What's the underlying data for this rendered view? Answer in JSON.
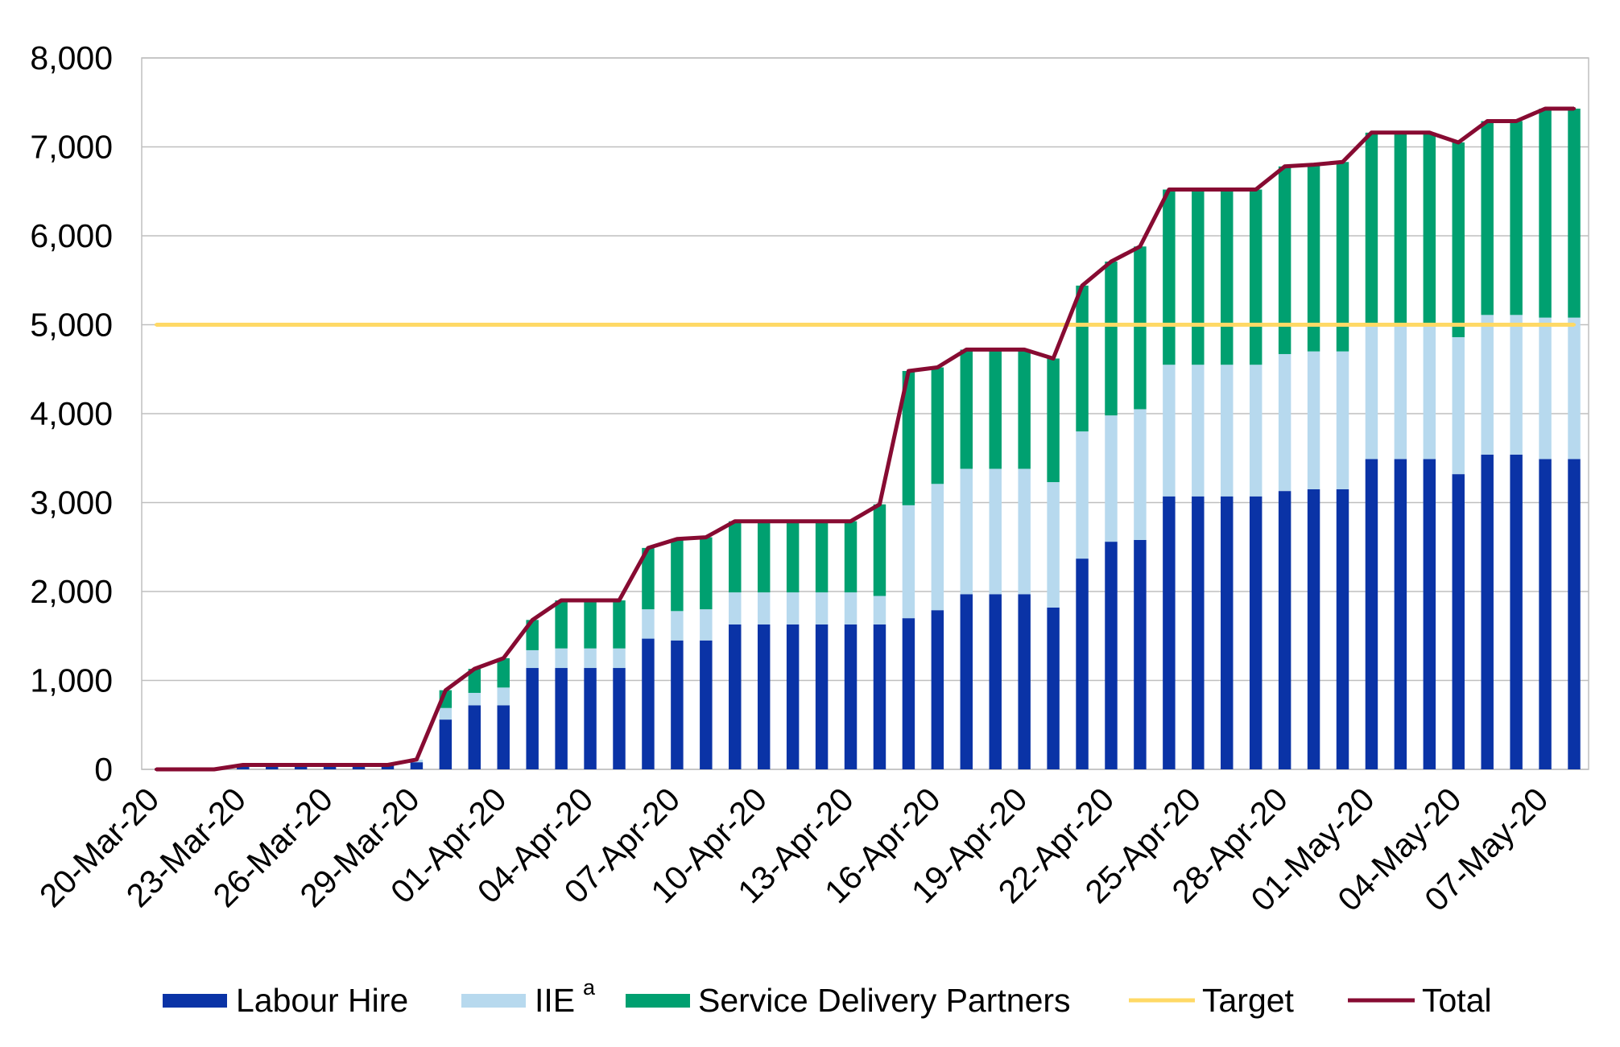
{
  "chart_data": {
    "type": "bar",
    "stacked": true,
    "categories": [
      "20-Mar-20",
      "21-Mar-20",
      "22-Mar-20",
      "23-Mar-20",
      "24-Mar-20",
      "25-Mar-20",
      "26-Mar-20",
      "27-Mar-20",
      "28-Mar-20",
      "29-Mar-20",
      "30-Mar-20",
      "31-Mar-20",
      "01-Apr-20",
      "02-Apr-20",
      "03-Apr-20",
      "04-Apr-20",
      "05-Apr-20",
      "06-Apr-20",
      "07-Apr-20",
      "08-Apr-20",
      "09-Apr-20",
      "10-Apr-20",
      "11-Apr-20",
      "12-Apr-20",
      "13-Apr-20",
      "14-Apr-20",
      "15-Apr-20",
      "16-Apr-20",
      "17-Apr-20",
      "18-Apr-20",
      "19-Apr-20",
      "20-Apr-20",
      "21-Apr-20",
      "22-Apr-20",
      "23-Apr-20",
      "24-Apr-20",
      "25-Apr-20",
      "26-Apr-20",
      "27-Apr-20",
      "28-Apr-20",
      "29-Apr-20",
      "30-Apr-20",
      "01-May-20",
      "02-May-20",
      "03-May-20",
      "04-May-20",
      "05-May-20",
      "06-May-20",
      "07-May-20",
      "08-May-20"
    ],
    "y_tick_labels": [
      "0",
      "1,000",
      "2,000",
      "3,000",
      "4,000",
      "5,000",
      "6,000",
      "7,000",
      "8,000"
    ],
    "ylim": [
      0,
      8000
    ],
    "grid": "horizontal",
    "legend_position": "bottom",
    "series": [
      {
        "name": "Labour Hire",
        "type": "bar",
        "color": "#0A33A6",
        "values": [
          0,
          0,
          0,
          50,
          50,
          50,
          50,
          50,
          50,
          80,
          560,
          720,
          720,
          1140,
          1140,
          1140,
          1140,
          1470,
          1450,
          1450,
          1630,
          1630,
          1630,
          1630,
          1630,
          1630,
          1700,
          1790,
          1970,
          1970,
          1970,
          1820,
          2370,
          2560,
          2580,
          3070,
          3070,
          3070,
          3070,
          3130,
          3150,
          3150,
          3490,
          3490,
          3490,
          3320,
          3540,
          3540,
          3490,
          3490
        ]
      },
      {
        "name": "IIE",
        "superscript": "a",
        "type": "bar",
        "color": "#B7D9EE",
        "values": [
          0,
          0,
          0,
          0,
          0,
          0,
          0,
          0,
          0,
          30,
          130,
          140,
          200,
          200,
          220,
          220,
          220,
          330,
          330,
          350,
          360,
          360,
          360,
          360,
          360,
          320,
          1270,
          1420,
          1410,
          1410,
          1410,
          1410,
          1430,
          1420,
          1470,
          1480,
          1480,
          1480,
          1480,
          1540,
          1550,
          1550,
          1520,
          1520,
          1520,
          1540,
          1570,
          1570,
          1590,
          1590
        ]
      },
      {
        "name": "Service Delivery Partners",
        "type": "bar",
        "color": "#00A070",
        "values": [
          0,
          0,
          0,
          0,
          0,
          0,
          0,
          0,
          0,
          0,
          200,
          270,
          330,
          340,
          540,
          540,
          540,
          690,
          810,
          810,
          800,
          800,
          800,
          800,
          800,
          1030,
          1510,
          1310,
          1340,
          1340,
          1340,
          1390,
          1640,
          1730,
          1830,
          1970,
          1970,
          1970,
          1970,
          2110,
          2100,
          2130,
          2150,
          2150,
          2150,
          2190,
          2180,
          2180,
          2350,
          2350
        ]
      },
      {
        "name": "Target",
        "type": "line",
        "color": "#FFD966",
        "values": [
          5000,
          5000,
          5000,
          5000,
          5000,
          5000,
          5000,
          5000,
          5000,
          5000,
          5000,
          5000,
          5000,
          5000,
          5000,
          5000,
          5000,
          5000,
          5000,
          5000,
          5000,
          5000,
          5000,
          5000,
          5000,
          5000,
          5000,
          5000,
          5000,
          5000,
          5000,
          5000,
          5000,
          5000,
          5000,
          5000,
          5000,
          5000,
          5000,
          5000,
          5000,
          5000,
          5000,
          5000,
          5000,
          5000,
          5000,
          5000,
          5000,
          5000
        ]
      },
      {
        "name": "Total",
        "type": "line",
        "color": "#870B32",
        "values": [
          0,
          0,
          0,
          50,
          50,
          50,
          50,
          50,
          50,
          110,
          890,
          1130,
          1250,
          1680,
          1900,
          1900,
          1900,
          2490,
          2590,
          2610,
          2790,
          2790,
          2790,
          2790,
          2790,
          2980,
          4480,
          4520,
          4720,
          4720,
          4720,
          4620,
          5440,
          5710,
          5880,
          6520,
          6520,
          6520,
          6520,
          6780,
          6800,
          6830,
          7160,
          7160,
          7160,
          7050,
          7290,
          7290,
          7430,
          7430
        ]
      }
    ]
  }
}
